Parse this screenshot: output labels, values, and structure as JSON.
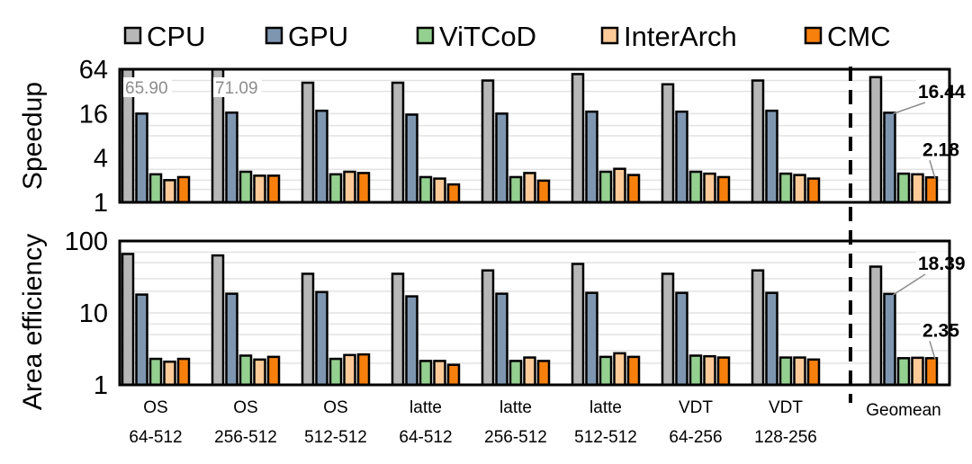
{
  "chart_data": {
    "type": "bar",
    "legend": {
      "placement": "top",
      "entries": [
        "CPU",
        "GPU",
        "ViTCoD",
        "InterArch",
        "CMC"
      ]
    },
    "colors": {
      "CPU": "#b7b7b7",
      "GPU": "#7f96b1",
      "ViTCoD": "#94d08f",
      "InterArch": "#fdca98",
      "CMC": "#f7800d"
    },
    "categories": [
      [
        "OS",
        "64-512"
      ],
      [
        "OS",
        "256-512"
      ],
      [
        "OS",
        "512-512"
      ],
      [
        "latte",
        "64-512"
      ],
      [
        "latte",
        "256-512"
      ],
      [
        "latte",
        "512-512"
      ],
      [
        "VDT",
        "64-256"
      ],
      [
        "VDT",
        "128-256"
      ],
      [
        "Geomean"
      ]
    ],
    "separator": "dashed line before Geomean",
    "panels": [
      {
        "ylabel": "Speedup",
        "scale": "log2",
        "ylim": [
          1,
          64
        ],
        "ticks": [
          "1",
          "4",
          "16",
          "64"
        ],
        "grid": true,
        "series": [
          {
            "name": "CPU",
            "values": [
              65.9,
              71.09,
              42,
              42,
              45,
              55,
              40,
              45,
              50
            ]
          },
          {
            "name": "GPU",
            "values": [
              16,
              16.5,
              17.5,
              15.5,
              16,
              17,
              17,
              17.5,
              16.44
            ]
          },
          {
            "name": "ViTCoD",
            "values": [
              2.4,
              2.6,
              2.4,
              2.2,
              2.2,
              2.6,
              2.6,
              2.45,
              2.45
            ]
          },
          {
            "name": "InterArch",
            "values": [
              2.0,
              2.3,
              2.6,
              2.1,
              2.5,
              2.85,
              2.45,
              2.35,
              2.4
            ]
          },
          {
            "name": "CMC",
            "values": [
              2.2,
              2.3,
              2.5,
              1.75,
              1.97,
              2.35,
              2.2,
              2.1,
              2.18
            ]
          }
        ],
        "clipped_labels": [
          "65.90",
          "71.09"
        ],
        "annotations": [
          {
            "text": "16.44",
            "series": "GPU",
            "category": "Geomean"
          },
          {
            "text": "2.18",
            "series": "CMC",
            "category": "Geomean"
          }
        ]
      },
      {
        "ylabel": "Area efficiency",
        "scale": "log10",
        "ylim": [
          1,
          100
        ],
        "ticks": [
          "1",
          "10",
          "100"
        ],
        "grid": true,
        "series": [
          {
            "name": "CPU",
            "values": [
              66,
              63,
              35,
              35,
              39,
              48,
              35,
              39,
              44
            ]
          },
          {
            "name": "GPU",
            "values": [
              18,
              18.5,
              19.5,
              17,
              18.5,
              19,
              19,
              19,
              18.39
            ]
          },
          {
            "name": "ViTCoD",
            "values": [
              2.3,
              2.55,
              2.3,
              2.15,
              2.15,
              2.45,
              2.55,
              2.4,
              2.35
            ]
          },
          {
            "name": "InterArch",
            "values": [
              2.1,
              2.25,
              2.6,
              2.15,
              2.4,
              2.75,
              2.5,
              2.4,
              2.38
            ]
          },
          {
            "name": "CMC",
            "values": [
              2.3,
              2.45,
              2.65,
              1.9,
              2.15,
              2.45,
              2.4,
              2.25,
              2.35
            ]
          }
        ],
        "annotations": [
          {
            "text": "18.39",
            "series": "GPU",
            "category": "Geomean"
          },
          {
            "text": "2.35",
            "series": "CMC",
            "category": "Geomean"
          }
        ]
      }
    ]
  }
}
